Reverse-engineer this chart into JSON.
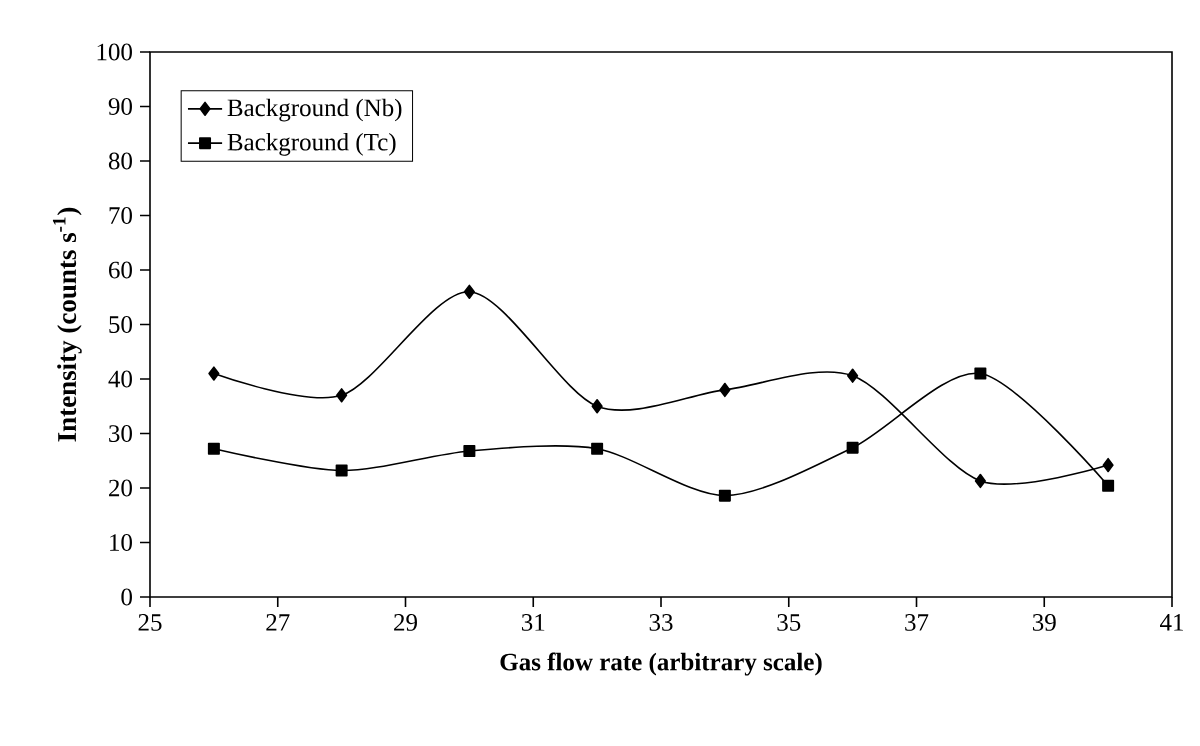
{
  "chart_data": {
    "type": "line",
    "xlabel": "Gas flow rate (arbitrary scale)",
    "ylabel": "**Intensity (counts s$^{-1}$)**",
    "x": [
      26,
      28,
      30,
      32,
      34,
      36,
      38,
      40
    ],
    "series": [
      {
        "name": "Background (Nb)",
        "color": "#000000",
        "marker": "diamond",
        "values": [
          41,
          37,
          56,
          35,
          38,
          40.6,
          21.3,
          24.2
        ]
      },
      {
        "name": "Background (Tc)",
        "color": "#000000",
        "marker": "square",
        "values": [
          27.2,
          23.2,
          26.8,
          27.2,
          18.6,
          27.4,
          41,
          20.4
        ]
      }
    ],
    "xlim": [
      25,
      41
    ],
    "xticks": [
      25,
      27,
      29,
      31,
      33,
      35,
      37,
      39,
      41
    ],
    "ylim": [
      0,
      100
    ],
    "yticks": [
      0,
      10,
      20,
      30,
      40,
      50,
      60,
      70,
      80,
      90,
      100
    ],
    "legend": "top left",
    "grid": false
  }
}
